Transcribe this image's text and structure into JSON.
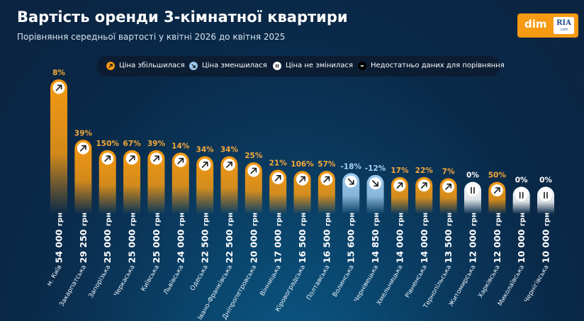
{
  "header": {
    "title": "Вартість оренди 3-кімнатної квартири",
    "subtitle": "Порівняння середньої вартості у квітні 2026 до квітня 2025"
  },
  "logo": {
    "text": "dim",
    "badge": "RIA",
    "badge_sub": ".com"
  },
  "colors": {
    "increase": "#f59a12",
    "decrease": "#9cc9ee",
    "unchanged": "#ffffff",
    "nodata": "#000000",
    "increase_label": "#f6a93a",
    "decrease_label": "#a9d2f3",
    "unchanged_label": "#ffffff"
  },
  "legend": [
    {
      "key": "increase",
      "label": "Ціна збільшилася",
      "icon": "arrow-up-right-icon"
    },
    {
      "key": "decrease",
      "label": "Ціна зменшилася",
      "icon": "arrow-down-right-icon"
    },
    {
      "key": "unchanged",
      "label": "Ціна не змінилася",
      "icon": "pause-icon"
    },
    {
      "key": "nodata",
      "label": "Недостатньо даних для порівняння",
      "icon": "minus-icon"
    }
  ],
  "chart_data": {
    "type": "bar",
    "unit": "грн",
    "ylim": [
      0,
      54000
    ],
    "categories": [
      "м. Київ",
      "Закарпатська",
      "Запорізька",
      "Черкаська",
      "Київська",
      "Львівська",
      "Одеська",
      "Івано-Франківська",
      "Дніпропетровська",
      "Вінницька",
      "Кіровоградська",
      "Полтавська",
      "Волинська",
      "Чернівецька",
      "Хмельницька",
      "Рівненська",
      "Тернопільська",
      "Житомирська",
      "Харківська",
      "Миколаївська",
      "Чернігівська"
    ],
    "values": [
      54000,
      29250,
      25000,
      25000,
      25000,
      24000,
      22500,
      22500,
      20000,
      17000,
      16500,
      16500,
      15600,
      14850,
      14000,
      14000,
      13500,
      12000,
      12000,
      10000,
      10000
    ],
    "value_labels": [
      "54 000",
      "29 250",
      "25 000",
      "25 000",
      "25 000",
      "24 000",
      "22 500",
      "22 500",
      "20 000",
      "17 000",
      "16 500",
      "16 500",
      "15 600",
      "14 850",
      "14 000",
      "14 000",
      "13 500",
      "12 000",
      "12 000",
      "10 000",
      "10 000"
    ],
    "changes": [
      "8%",
      "39%",
      "150%",
      "67%",
      "39%",
      "14%",
      "34%",
      "34%",
      "25%",
      "21%",
      "106%",
      "57%",
      "-18%",
      "-12%",
      "17%",
      "22%",
      "7%",
      "0%",
      "50%",
      "0%",
      "0%"
    ],
    "status": [
      "increase",
      "increase",
      "increase",
      "increase",
      "increase",
      "increase",
      "increase",
      "increase",
      "increase",
      "increase",
      "increase",
      "increase",
      "decrease",
      "decrease",
      "increase",
      "increase",
      "increase",
      "unchanged",
      "increase",
      "unchanged",
      "unchanged"
    ]
  }
}
